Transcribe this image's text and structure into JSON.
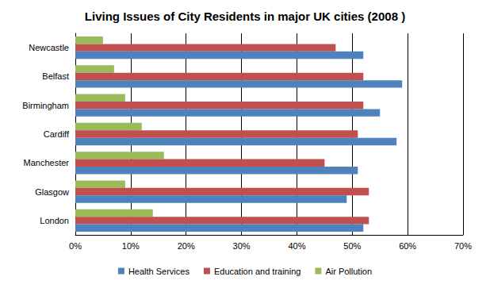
{
  "chart_data": {
    "type": "bar",
    "orientation": "horizontal",
    "title": "Living Issues of City Residents in major UK cities (2008 )",
    "categories": [
      "Newcastle",
      "Belfast",
      "Birmingham",
      "Cardiff",
      "Manchester",
      "Glasgow",
      "London"
    ],
    "series": [
      {
        "name": "Health Services",
        "color": "#4f81bd",
        "values": [
          52,
          59,
          55,
          58,
          51,
          49,
          52
        ]
      },
      {
        "name": "Education and training",
        "color": "#c0504d",
        "values": [
          47,
          52,
          52,
          51,
          45,
          53,
          53
        ]
      },
      {
        "name": "Air Pollution",
        "color": "#9bbb59",
        "values": [
          5,
          7,
          9,
          12,
          16,
          9,
          14
        ]
      }
    ],
    "xlim": [
      0,
      70
    ],
    "xticks": [
      {
        "value": 0,
        "label": "0%"
      },
      {
        "value": 10,
        "label": "10%"
      },
      {
        "value": 20,
        "label": "20%"
      },
      {
        "value": 30,
        "label": "30%"
      },
      {
        "value": 40,
        "label": "40%"
      },
      {
        "value": 50,
        "label": "50%"
      },
      {
        "value": 60,
        "label": "60%"
      },
      {
        "value": 70,
        "label": "70%"
      }
    ],
    "grid": true,
    "legend": "bottom"
  }
}
